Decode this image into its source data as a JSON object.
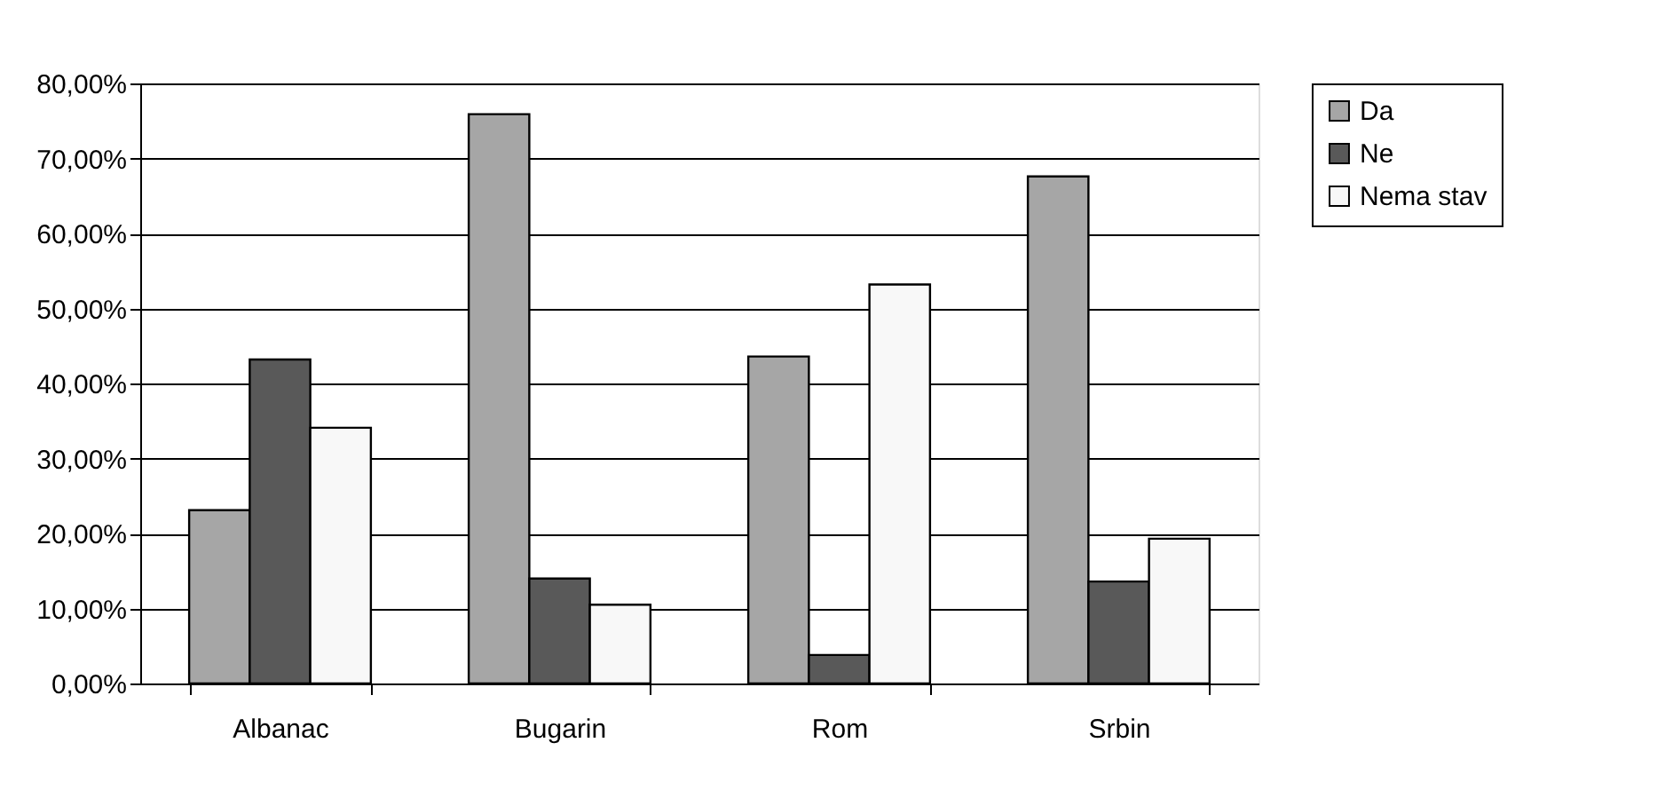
{
  "chart_data": {
    "type": "bar",
    "categories": [
      "Albanac",
      "Bugarin",
      "Rom",
      "Srbin"
    ],
    "series": [
      {
        "name": "Da",
        "color": "#a6a6a6",
        "values": [
          23.1,
          75.9,
          43.6,
          67.6
        ]
      },
      {
        "name": "Ne",
        "color": "#595959",
        "values": [
          43.2,
          14.0,
          3.8,
          13.6
        ]
      },
      {
        "name": "Nema stav",
        "color": "#f8f8f8",
        "values": [
          34.1,
          10.5,
          53.2,
          19.3
        ]
      }
    ],
    "ylim": [
      0,
      80
    ],
    "yticks": [
      {
        "value": 0,
        "label": "0,00%"
      },
      {
        "value": 10,
        "label": "10,00%"
      },
      {
        "value": 20,
        "label": "20,00%"
      },
      {
        "value": 30,
        "label": "30,00%"
      },
      {
        "value": 40,
        "label": "40,00%"
      },
      {
        "value": 50,
        "label": "50,00%"
      },
      {
        "value": 60,
        "label": "60,00%"
      },
      {
        "value": 70,
        "label": "70,00%"
      },
      {
        "value": 80,
        "label": "80,00%"
      }
    ],
    "grid": "y",
    "legend": "right"
  }
}
